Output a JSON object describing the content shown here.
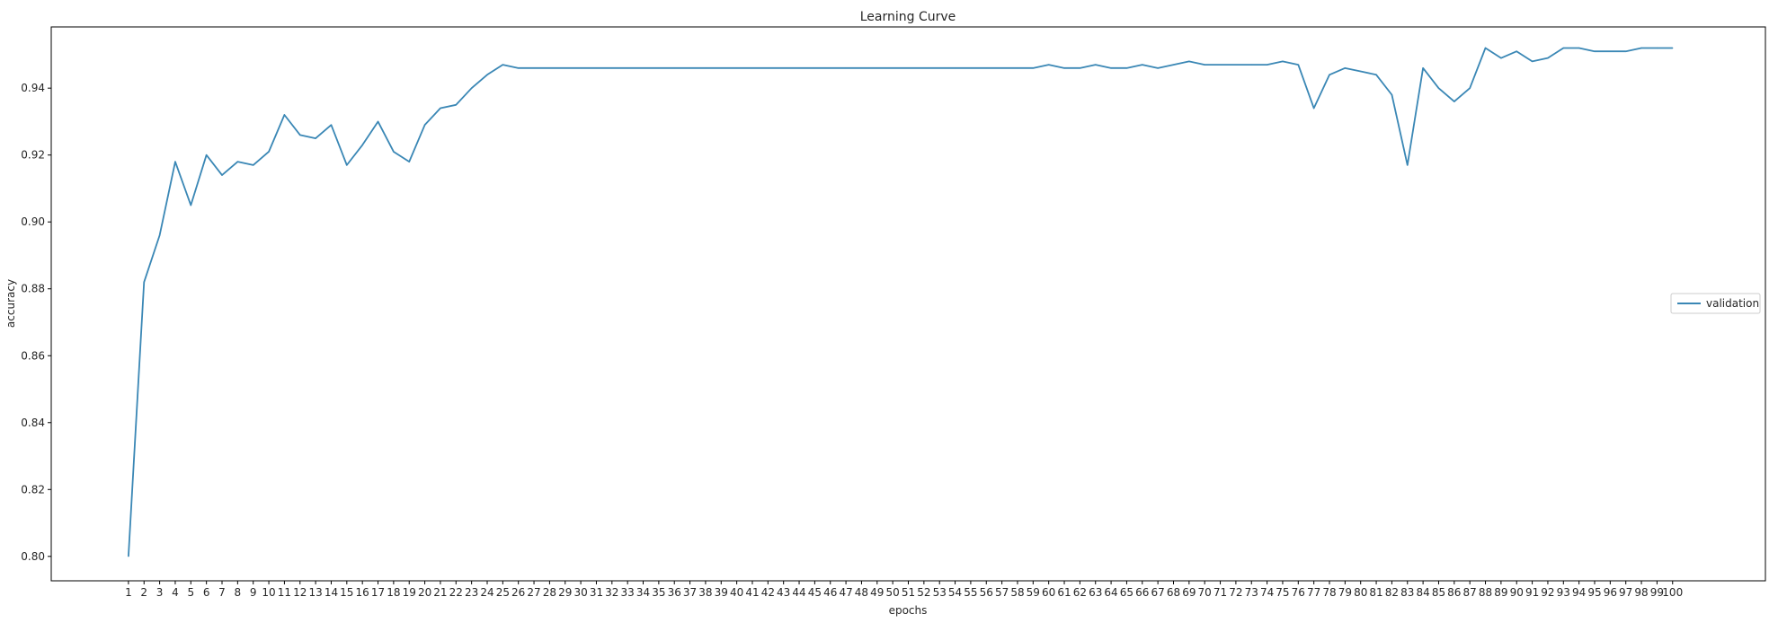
{
  "chart_data": {
    "type": "line",
    "title": "Learning Curve",
    "xlabel": "epochs",
    "ylabel": "accuracy",
    "grid": false,
    "legend_position": "center-right",
    "x": [
      1,
      2,
      3,
      4,
      5,
      6,
      7,
      8,
      9,
      10,
      11,
      12,
      13,
      14,
      15,
      16,
      17,
      18,
      19,
      20,
      21,
      22,
      23,
      24,
      25,
      26,
      27,
      28,
      29,
      30,
      31,
      32,
      33,
      34,
      35,
      36,
      37,
      38,
      39,
      40,
      41,
      42,
      43,
      44,
      45,
      46,
      47,
      48,
      49,
      50,
      51,
      52,
      53,
      54,
      55,
      56,
      57,
      58,
      59,
      60,
      61,
      62,
      63,
      64,
      65,
      66,
      67,
      68,
      69,
      70,
      71,
      72,
      73,
      74,
      75,
      76,
      77,
      78,
      79,
      80,
      81,
      82,
      83,
      84,
      85,
      86,
      87,
      88,
      89,
      90,
      91,
      92,
      93,
      94,
      95,
      96,
      97,
      98,
      99,
      100
    ],
    "x_tick_labels": [
      "1",
      "2",
      "3",
      "4",
      "5",
      "6",
      "7",
      "8",
      "9",
      "10",
      "11",
      "12",
      "13",
      "14",
      "15",
      "16",
      "17",
      "18",
      "19",
      "20",
      "21",
      "22",
      "23",
      "24",
      "25",
      "26",
      "27",
      "28",
      "29",
      "30",
      "31",
      "32",
      "33",
      "34",
      "35",
      "36",
      "37",
      "38",
      "39",
      "40",
      "41",
      "42",
      "43",
      "44",
      "45",
      "46",
      "47",
      "48",
      "49",
      "50",
      "51",
      "52",
      "53",
      "54",
      "55",
      "56",
      "57",
      "58",
      "59",
      "60",
      "61",
      "62",
      "63",
      "64",
      "65",
      "66",
      "67",
      "68",
      "69",
      "70",
      "71",
      "72",
      "73",
      "74",
      "75",
      "76",
      "77",
      "78",
      "79",
      "80",
      "81",
      "82",
      "83",
      "84",
      "85",
      "86",
      "87",
      "88",
      "89",
      "90",
      "91",
      "92",
      "93",
      "94",
      "95",
      "96",
      "97",
      "98",
      "99",
      "100"
    ],
    "y_ticks": [
      0.8,
      0.82,
      0.84,
      0.86,
      0.88,
      0.9,
      0.92,
      0.94
    ],
    "y_tick_labels": [
      "0.80",
      "0.82",
      "0.84",
      "0.86",
      "0.88",
      "0.90",
      "0.92",
      "0.94"
    ],
    "ylim": [
      0.7927,
      0.9583
    ],
    "xlim": [
      -3.95,
      105.95
    ],
    "series": [
      {
        "name": "validation",
        "color": "#3a87b5",
        "values": [
          0.8,
          0.882,
          0.896,
          0.918,
          0.905,
          0.92,
          0.914,
          0.918,
          0.917,
          0.921,
          0.932,
          0.926,
          0.925,
          0.929,
          0.917,
          0.923,
          0.93,
          0.921,
          0.918,
          0.929,
          0.934,
          0.935,
          0.94,
          0.944,
          0.947,
          0.946,
          0.946,
          0.946,
          0.946,
          0.946,
          0.946,
          0.946,
          0.946,
          0.946,
          0.946,
          0.946,
          0.946,
          0.946,
          0.946,
          0.946,
          0.946,
          0.946,
          0.946,
          0.946,
          0.946,
          0.946,
          0.946,
          0.946,
          0.946,
          0.946,
          0.946,
          0.946,
          0.946,
          0.946,
          0.946,
          0.946,
          0.946,
          0.946,
          0.946,
          0.947,
          0.946,
          0.946,
          0.947,
          0.946,
          0.946,
          0.947,
          0.946,
          0.947,
          0.948,
          0.947,
          0.947,
          0.947,
          0.947,
          0.947,
          0.948,
          0.947,
          0.934,
          0.944,
          0.946,
          0.945,
          0.944,
          0.938,
          0.917,
          0.946,
          0.94,
          0.936,
          0.94,
          0.952,
          0.949,
          0.951,
          0.948,
          0.949,
          0.952,
          0.952,
          0.951,
          0.951,
          0.951,
          0.952,
          0.952,
          0.952
        ]
      }
    ]
  }
}
